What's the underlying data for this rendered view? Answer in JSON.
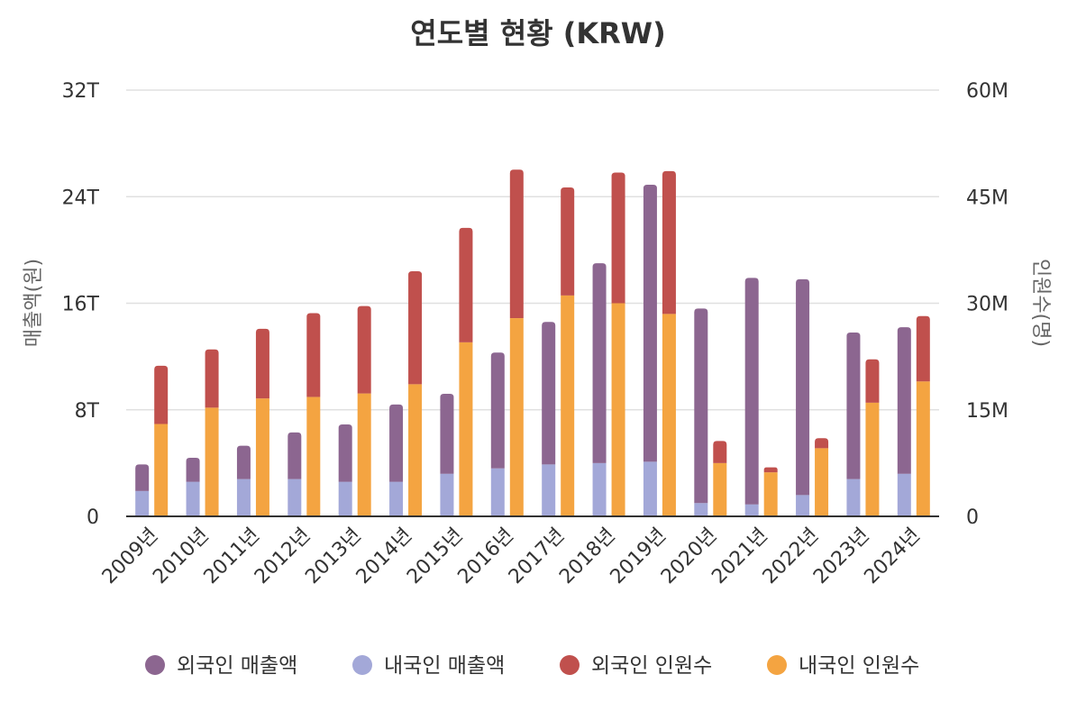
{
  "chart_data": {
    "type": "bar",
    "title": "연도별 현황 (KRW)",
    "categories": [
      "2009년",
      "2010년",
      "2011년",
      "2012년",
      "2013년",
      "2014년",
      "2015년",
      "2016년",
      "2017년",
      "2018년",
      "2019년",
      "2020년",
      "2021년",
      "2022년",
      "2023년",
      "2024년"
    ],
    "y_left": {
      "label": "매출액(원)",
      "range": [
        0,
        32000000000000
      ],
      "ticks": [
        0,
        8000000000000,
        16000000000000,
        24000000000000,
        32000000000000
      ],
      "tick_labels": [
        "0",
        "8T",
        "16T",
        "24T",
        "32T"
      ]
    },
    "y_right": {
      "label": "인원수(명)",
      "range": [
        0,
        60000000
      ],
      "ticks": [
        0,
        15000000,
        30000000,
        45000000,
        60000000
      ],
      "tick_labels": [
        "0",
        "15M",
        "30M",
        "45M",
        "60M"
      ]
    },
    "grid": true,
    "legend_position": "bottom",
    "stacks": [
      {
        "name": "매출액",
        "axis": "left",
        "series": [
          {
            "name": "내국인 매출액",
            "color": "#a3a8d8",
            "values": [
              1900000000000,
              2600000000000,
              2800000000000,
              2800000000000,
              2600000000000,
              2600000000000,
              3200000000000,
              3600000000000,
              3900000000000,
              4000000000000,
              4100000000000,
              1000000000000,
              900000000000,
              1600000000000,
              2800000000000,
              3200000000000
            ]
          },
          {
            "name": "외국인 매출액",
            "color": "#8c6690",
            "values": [
              2000000000000,
              1800000000000,
              2500000000000,
              3500000000000,
              4300000000000,
              5800000000000,
              6000000000000,
              8700000000000,
              10700000000000,
              15000000000000,
              20800000000000,
              14600000000000,
              17000000000000,
              16200000000000,
              11000000000000,
              11000000000000
            ]
          }
        ]
      },
      {
        "name": "인원수",
        "axis": "right",
        "series": [
          {
            "name": "내국인 인원수",
            "color": "#f4a441",
            "values": [
              13000000,
              15300000,
              16600000,
              16800000,
              17300000,
              18600000,
              24500000,
              27900000,
              31100000,
              30000000,
              28500000,
              7500000,
              6200000,
              9600000,
              16000000,
              19000000
            ]
          },
          {
            "name": "외국인 인원수",
            "color": "#c0504d",
            "values": [
              8200000,
              8200000,
              9800000,
              11800000,
              12300000,
              15900000,
              16100000,
              20900000,
              15200000,
              18400000,
              20100000,
              3100000,
              700000,
              1400000,
              6100000,
              9200000
            ]
          }
        ]
      }
    ],
    "legend": [
      {
        "name": "외국인 매출액",
        "color": "#8c6690"
      },
      {
        "name": "내국인 매출액",
        "color": "#a3a8d8"
      },
      {
        "name": "외국인 인원수",
        "color": "#c0504d"
      },
      {
        "name": "내국인 인원수",
        "color": "#f4a441"
      }
    ]
  }
}
